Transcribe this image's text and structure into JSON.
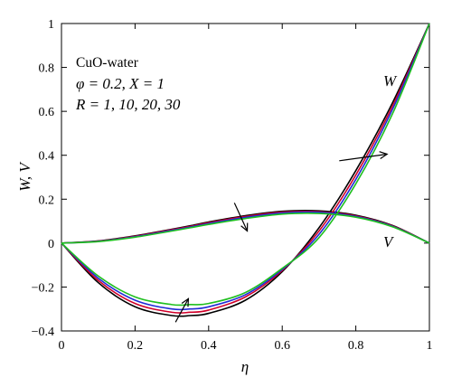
{
  "chart_data": {
    "type": "line",
    "xlabel": "η",
    "ylabel": "W, V",
    "xlim": [
      0,
      1
    ],
    "ylim": [
      -0.4,
      1
    ],
    "xticks": [
      0,
      0.2,
      0.4,
      0.6,
      0.8,
      1
    ],
    "xtick_labels": [
      "0",
      "0.2",
      "0.4",
      "0.6",
      "0.8",
      "1"
    ],
    "yticks": [
      -0.4,
      -0.2,
      0,
      0.2,
      0.4,
      0.6,
      0.8,
      1
    ],
    "ytick_labels": [
      "−0.4",
      "−0.2",
      "0",
      "0.2",
      "0.4",
      "0.6",
      "0.8",
      "1"
    ],
    "grid": false,
    "annotations": {
      "fluid": "CuO-water",
      "params_line": "φ = 0.2, X = 1",
      "r_line": "R = 1, 10, 20, 30",
      "w_label": "W",
      "v_label": "V"
    },
    "colors": [
      "#000000",
      "#d0002a",
      "#1f2bd6",
      "#1fbf1f"
    ],
    "x": [
      0,
      0.1,
      0.2,
      0.3,
      0.35,
      0.4,
      0.5,
      0.6,
      0.7,
      0.8,
      0.9,
      1.0
    ],
    "series": [
      {
        "R": 1,
        "W": [
          0,
          -0.18,
          -0.29,
          -0.33,
          -0.33,
          -0.32,
          -0.26,
          -0.13,
          0.07,
          0.33,
          0.64,
          1.0
        ],
        "V": [
          0,
          0.01,
          0.033,
          0.063,
          0.079,
          0.096,
          0.125,
          0.145,
          0.147,
          0.127,
          0.08,
          0.0
        ]
      },
      {
        "R": 10,
        "W": [
          0,
          -0.17,
          -0.275,
          -0.315,
          -0.315,
          -0.305,
          -0.245,
          -0.125,
          0.055,
          0.31,
          0.625,
          1.0
        ],
        "V": [
          0,
          0.009,
          0.031,
          0.061,
          0.076,
          0.093,
          0.121,
          0.141,
          0.143,
          0.124,
          0.078,
          0.0
        ]
      },
      {
        "R": 20,
        "W": [
          0,
          -0.16,
          -0.26,
          -0.3,
          -0.3,
          -0.29,
          -0.235,
          -0.12,
          0.04,
          0.29,
          0.61,
          1.0
        ],
        "V": [
          0,
          0.008,
          0.029,
          0.058,
          0.073,
          0.089,
          0.117,
          0.137,
          0.14,
          0.121,
          0.076,
          0.0
        ]
      },
      {
        "R": 30,
        "W": [
          0,
          -0.15,
          -0.245,
          -0.28,
          -0.28,
          -0.275,
          -0.225,
          -0.115,
          0.025,
          0.27,
          0.59,
          1.0
        ],
        "V": [
          0,
          0.007,
          0.027,
          0.055,
          0.07,
          0.085,
          0.112,
          0.132,
          0.135,
          0.118,
          0.074,
          0.0
        ]
      }
    ]
  }
}
